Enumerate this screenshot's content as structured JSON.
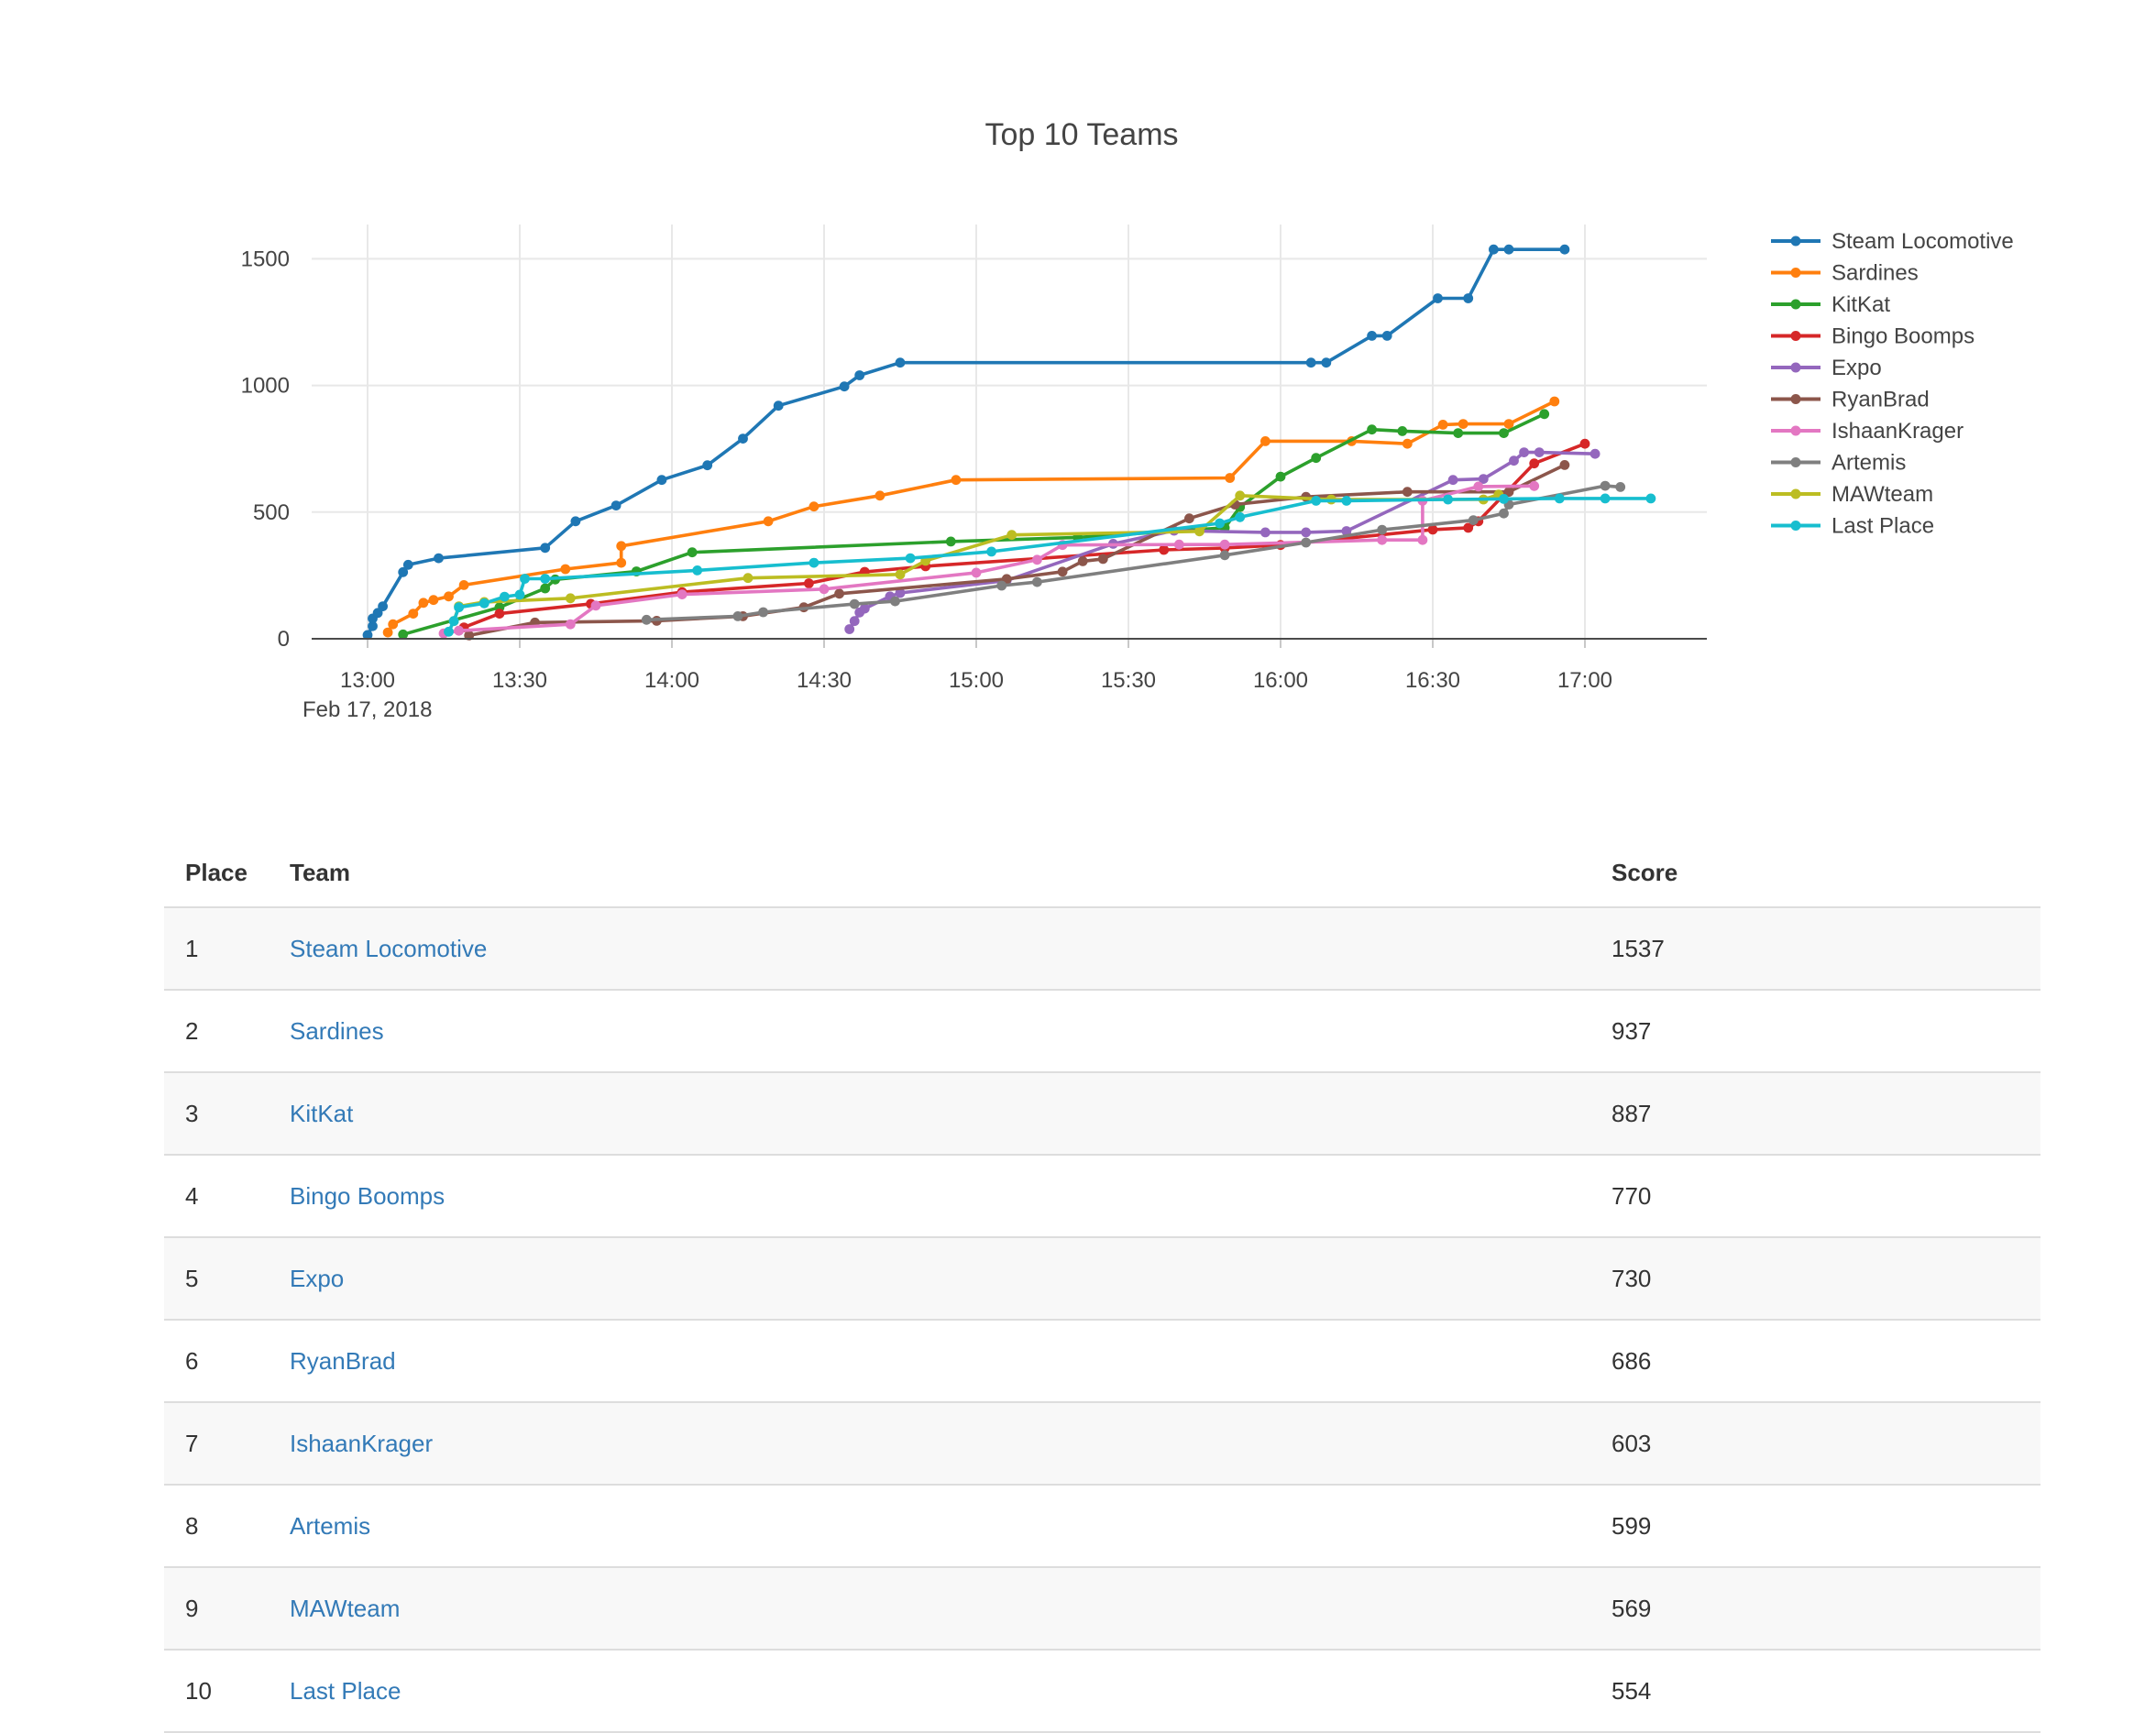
{
  "page": {
    "background": "#ffffff"
  },
  "chart_data": {
    "type": "line",
    "title": "Top 10 Teams",
    "grid": true,
    "legend_position": "right",
    "x_axis": {
      "date_label": "Feb 17, 2018",
      "ticks": [
        "13:00",
        "13:30",
        "14:00",
        "14:30",
        "15:00",
        "15:30",
        "16:00",
        "16:30",
        "17:00"
      ],
      "unit": "time of day"
    },
    "y_axis": {
      "ticks": [
        0,
        500,
        1000,
        1500
      ],
      "range": [
        0,
        1620
      ]
    },
    "series": [
      {
        "name": "Steam Locomotive",
        "color": "#1f77b4",
        "points": [
          [
            "13:00",
            15
          ],
          [
            "13:01",
            50
          ],
          [
            "13:01",
            80
          ],
          [
            "13:02",
            102
          ],
          [
            "13:03",
            128
          ],
          [
            "13:07",
            263
          ],
          [
            "13:08",
            292
          ],
          [
            "13:14",
            318
          ],
          [
            "13:35",
            359
          ],
          [
            "13:41",
            464
          ],
          [
            "13:49",
            526
          ],
          [
            "13:58",
            627
          ],
          [
            "14:07",
            685
          ],
          [
            "14:14",
            790
          ],
          [
            "14:21",
            920
          ],
          [
            "14:34",
            996
          ],
          [
            "14:37",
            1040
          ],
          [
            "14:45",
            1090
          ],
          [
            "16:06",
            1090
          ],
          [
            "16:09",
            1090
          ],
          [
            "16:18",
            1196
          ],
          [
            "16:21",
            1196
          ],
          [
            "16:31",
            1344
          ],
          [
            "16:37",
            1344
          ],
          [
            "16:42",
            1537
          ],
          [
            "16:45",
            1537
          ],
          [
            "16:56",
            1537
          ]
        ]
      },
      {
        "name": "Sardines",
        "color": "#ff7f0e",
        "points": [
          [
            "13:04",
            25
          ],
          [
            "13:05",
            57
          ],
          [
            "13:09",
            99
          ],
          [
            "13:11",
            142
          ],
          [
            "13:13",
            153
          ],
          [
            "13:16",
            167
          ],
          [
            "13:19",
            212
          ],
          [
            "13:39",
            275
          ],
          [
            "13:50",
            300
          ],
          [
            "13:50",
            366
          ],
          [
            "14:19",
            464
          ],
          [
            "14:28",
            522
          ],
          [
            "14:41",
            565
          ],
          [
            "14:56",
            627
          ],
          [
            "15:50",
            635
          ],
          [
            "15:57",
            780
          ],
          [
            "16:14",
            780
          ],
          [
            "16:25",
            770
          ],
          [
            "16:32",
            845
          ],
          [
            "16:36",
            848
          ],
          [
            "16:45",
            848
          ],
          [
            "16:54",
            937
          ]
        ]
      },
      {
        "name": "KitKat",
        "color": "#2ca02c",
        "points": [
          [
            "13:07",
            17
          ],
          [
            "13:26",
            124
          ],
          [
            "13:35",
            199
          ],
          [
            "13:37",
            234
          ],
          [
            "13:53",
            266
          ],
          [
            "14:04",
            341
          ],
          [
            "14:55",
            384
          ],
          [
            "15:20",
            400
          ],
          [
            "15:49",
            438
          ],
          [
            "15:52",
            520
          ],
          [
            "16:00",
            640
          ],
          [
            "16:07",
            714
          ],
          [
            "16:18",
            826
          ],
          [
            "16:24",
            820
          ],
          [
            "16:35",
            812
          ],
          [
            "16:44",
            812
          ],
          [
            "16:52",
            887
          ]
        ]
      },
      {
        "name": "Bingo Boomps",
        "color": "#d62728",
        "points": [
          [
            "13:19",
            45
          ],
          [
            "13:26",
            99
          ],
          [
            "13:44",
            138
          ],
          [
            "14:02",
            184
          ],
          [
            "14:27",
            219
          ],
          [
            "14:38",
            264
          ],
          [
            "14:50",
            286
          ],
          [
            "15:37",
            351
          ],
          [
            "15:49",
            358
          ],
          [
            "16:00",
            370
          ],
          [
            "16:30",
            431
          ],
          [
            "16:37",
            438
          ],
          [
            "16:39",
            464
          ],
          [
            "16:50",
            692
          ],
          [
            "17:00",
            770
          ]
        ]
      },
      {
        "name": "Expo",
        "color": "#9467bd",
        "points": [
          [
            "14:35",
            38
          ],
          [
            "14:36",
            70
          ],
          [
            "14:37",
            104
          ],
          [
            "14:38",
            119
          ],
          [
            "14:43",
            167
          ],
          [
            "14:45",
            181
          ],
          [
            "15:06",
            230
          ],
          [
            "15:27",
            375
          ],
          [
            "15:39",
            427
          ],
          [
            "15:57",
            420
          ],
          [
            "16:05",
            420
          ],
          [
            "16:13",
            425
          ],
          [
            "16:34",
            627
          ],
          [
            "16:40",
            631
          ],
          [
            "16:46",
            703
          ],
          [
            "16:48",
            736
          ],
          [
            "16:51",
            736
          ],
          [
            "17:02",
            730
          ]
        ]
      },
      {
        "name": "RyanBrad",
        "color": "#8c564b",
        "points": [
          [
            "13:20",
            13
          ],
          [
            "13:33",
            64
          ],
          [
            "13:57",
            71
          ],
          [
            "14:14",
            89
          ],
          [
            "14:26",
            124
          ],
          [
            "14:33",
            178
          ],
          [
            "15:06",
            236
          ],
          [
            "15:17",
            265
          ],
          [
            "15:21",
            306
          ],
          [
            "15:25",
            315
          ],
          [
            "15:42",
            475
          ],
          [
            "15:51",
            530
          ],
          [
            "16:05",
            560
          ],
          [
            "16:25",
            580
          ],
          [
            "16:45",
            580
          ],
          [
            "16:56",
            686
          ]
        ]
      },
      {
        "name": "IshaanKrager",
        "color": "#e377c2",
        "points": [
          [
            "13:15",
            21
          ],
          [
            "13:18",
            32
          ],
          [
            "13:40",
            57
          ],
          [
            "13:45",
            131
          ],
          [
            "14:02",
            175
          ],
          [
            "14:30",
            196
          ],
          [
            "15:00",
            261
          ],
          [
            "15:12",
            312
          ],
          [
            "15:17",
            370
          ],
          [
            "15:40",
            372
          ],
          [
            "15:49",
            372
          ],
          [
            "16:20",
            390
          ],
          [
            "16:28",
            390
          ],
          [
            "16:28",
            545
          ],
          [
            "16:39",
            601
          ],
          [
            "16:50",
            603
          ]
        ]
      },
      {
        "name": "Artemis",
        "color": "#7f7f7f",
        "points": [
          [
            "13:55",
            75
          ],
          [
            "14:13",
            89
          ],
          [
            "14:18",
            105
          ],
          [
            "14:36",
            137
          ],
          [
            "14:44",
            148
          ],
          [
            "15:05",
            210
          ],
          [
            "15:12",
            224
          ],
          [
            "15:49",
            330
          ],
          [
            "16:05",
            380
          ],
          [
            "16:20",
            430
          ],
          [
            "16:38",
            468
          ],
          [
            "16:44",
            495
          ],
          [
            "16:45",
            530
          ],
          [
            "17:04",
            604
          ],
          [
            "17:07",
            599
          ]
        ]
      },
      {
        "name": "MAWteam",
        "color": "#bcbd22",
        "points": [
          [
            "13:17",
            70
          ],
          [
            "13:18",
            128
          ],
          [
            "13:23",
            145
          ],
          [
            "13:40",
            160
          ],
          [
            "14:15",
            240
          ],
          [
            "14:45",
            254
          ],
          [
            "14:50",
            308
          ],
          [
            "15:07",
            410
          ],
          [
            "15:44",
            424
          ],
          [
            "15:52",
            565
          ],
          [
            "16:10",
            550
          ],
          [
            "16:40",
            550
          ],
          [
            "16:43",
            569
          ]
        ]
      },
      {
        "name": "Last Place",
        "color": "#17becf",
        "points": [
          [
            "13:16",
            28
          ],
          [
            "13:17",
            70
          ],
          [
            "13:18",
            124
          ],
          [
            "13:23",
            140
          ],
          [
            "13:27",
            166
          ],
          [
            "13:30",
            174
          ],
          [
            "13:31",
            237
          ],
          [
            "13:35",
            237
          ],
          [
            "14:05",
            270
          ],
          [
            "14:28",
            300
          ],
          [
            "14:47",
            318
          ],
          [
            "15:03",
            344
          ],
          [
            "15:48",
            456
          ],
          [
            "15:52",
            480
          ],
          [
            "16:07",
            545
          ],
          [
            "16:13",
            545
          ],
          [
            "16:33",
            550
          ],
          [
            "16:44",
            552
          ],
          [
            "16:55",
            554
          ],
          [
            "17:04",
            554
          ],
          [
            "17:13",
            554
          ]
        ]
      }
    ]
  },
  "table": {
    "headers": [
      "Place",
      "Team",
      "Score"
    ],
    "rows": [
      {
        "place": "1",
        "team": "Steam Locomotive",
        "score": "1537"
      },
      {
        "place": "2",
        "team": "Sardines",
        "score": "937"
      },
      {
        "place": "3",
        "team": "KitKat",
        "score": "887"
      },
      {
        "place": "4",
        "team": "Bingo Boomps",
        "score": "770"
      },
      {
        "place": "5",
        "team": "Expo",
        "score": "730"
      },
      {
        "place": "6",
        "team": "RyanBrad",
        "score": "686"
      },
      {
        "place": "7",
        "team": "IshaanKrager",
        "score": "603"
      },
      {
        "place": "8",
        "team": "Artemis",
        "score": "599"
      },
      {
        "place": "9",
        "team": "MAWteam",
        "score": "569"
      },
      {
        "place": "10",
        "team": "Last Place",
        "score": "554"
      }
    ],
    "link_color": "#337ab7",
    "stripe_color": "#f8f8f8",
    "border_color": "#dddddd",
    "axis_text_color": "#444444"
  }
}
